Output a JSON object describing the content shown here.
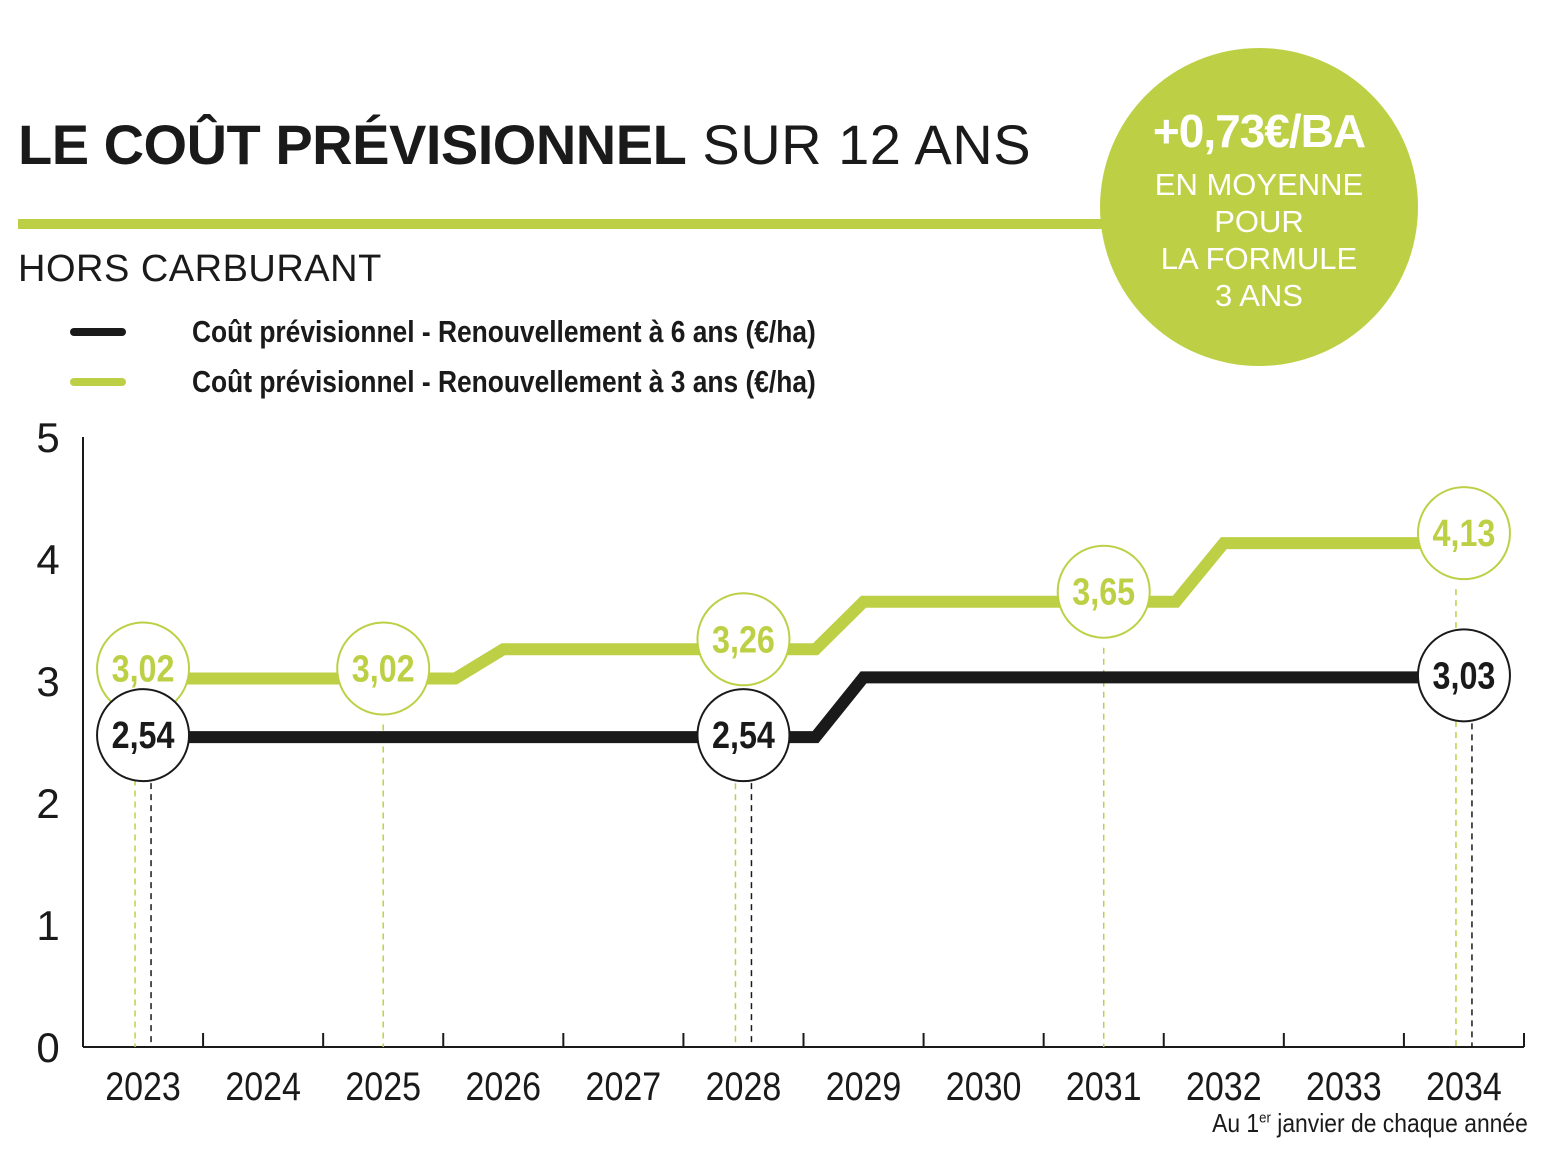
{
  "header": {
    "title_bold": "LE COÛT PRÉVISIONNEL",
    "title_light": "SUR 12 ANS",
    "subtitle": "HORS CARBURANT"
  },
  "badge": {
    "value": "+0,73€/BA",
    "line1": "EN MOYENNE",
    "line2": "POUR",
    "line3": "LA FORMULE",
    "line4": "3 ANS"
  },
  "legend": {
    "series_6": "Coût prévisionnel - Renouvellement à 6 ans (€/ha)",
    "series_3": "Coût prévisionnel - Renouvellement à 3 ans (€/ha)"
  },
  "footnote": {
    "pre": "Au 1",
    "sup": "er",
    "post": " janvier de chaque année"
  },
  "colors": {
    "green": "#bdd045",
    "black": "#1a1a1a"
  },
  "chart_data": {
    "type": "line",
    "title": "LE COÛT PRÉVISIONNEL SUR 12 ANS",
    "subtitle": "HORS CARBURANT",
    "xlabel": "Au 1er janvier de chaque année",
    "ylabel": "",
    "categories": [
      "2023",
      "2024",
      "2025",
      "2026",
      "2027",
      "2028",
      "2029",
      "2030",
      "2031",
      "2032",
      "2033",
      "2034"
    ],
    "yticks": [
      "0",
      "1",
      "2",
      "3",
      "4",
      "5"
    ],
    "ylim": [
      0,
      5
    ],
    "grid": false,
    "series": [
      {
        "name": "Coût prévisionnel - Renouvellement à 6 ans (€/ha)",
        "color": "#1a1a1a",
        "values": [
          2.54,
          2.54,
          2.54,
          2.54,
          2.54,
          2.54,
          3.03,
          3.03,
          3.03,
          3.03,
          3.03,
          3.03
        ],
        "labels": [
          {
            "index": 0,
            "text": "2,54"
          },
          {
            "index": 5,
            "text": "2,54"
          },
          {
            "index": 11,
            "text": "3,03"
          }
        ]
      },
      {
        "name": "Coût prévisionnel - Renouvellement à 3 ans (€/ha)",
        "color": "#bdd045",
        "values": [
          3.02,
          3.02,
          3.02,
          3.26,
          3.26,
          3.26,
          3.65,
          3.65,
          3.65,
          4.13,
          4.13,
          4.13
        ],
        "labels": [
          {
            "index": 0,
            "text": "3,02"
          },
          {
            "index": 2,
            "text": "3,02"
          },
          {
            "index": 5,
            "text": "3,26"
          },
          {
            "index": 8,
            "text": "3,65"
          },
          {
            "index": 11,
            "text": "4,13"
          }
        ]
      }
    ]
  }
}
